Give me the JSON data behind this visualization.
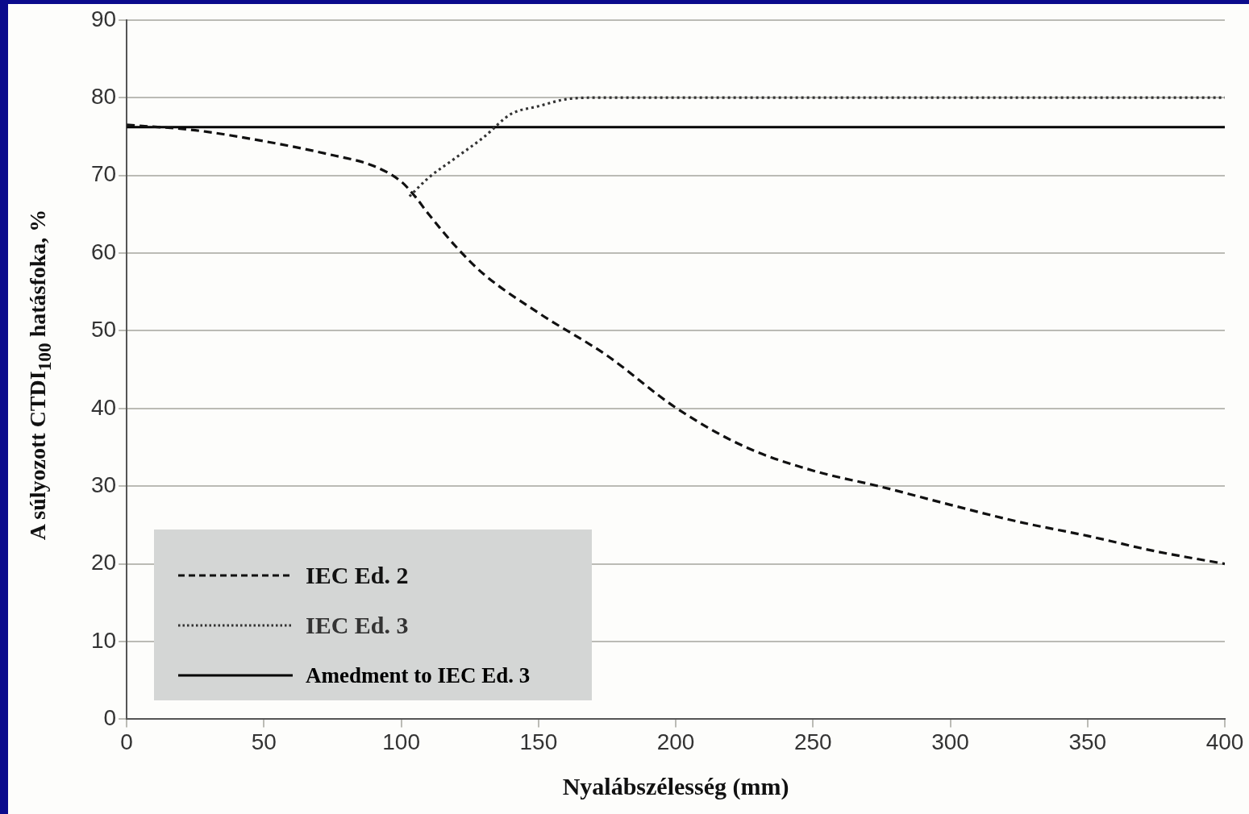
{
  "chart_data": {
    "type": "line",
    "xlabel": "Nyalábszélesség (mm)",
    "ylabel": "A súlyozott CTDI$_{100}$ hatásfoka, %",
    "xlim": [
      0,
      400
    ],
    "xticks": [
      0,
      50,
      100,
      150,
      200,
      250,
      300,
      350,
      400
    ],
    "ylim": [
      0,
      90
    ],
    "yticks": [
      0,
      10,
      20,
      30,
      40,
      50,
      60,
      70,
      80,
      90
    ],
    "grid": "y",
    "legend": "bottom left",
    "marker": "none",
    "series": [
      {
        "name": "IEC Ed. 2",
        "color": "#111111",
        "line_style": "dashed",
        "x": [
          0,
          25,
          50,
          75,
          90,
          100,
          105,
          110,
          120,
          130,
          150,
          175,
          200,
          225,
          250,
          275,
          300,
          325,
          350,
          375,
          400
        ],
        "values": [
          76.5,
          75.8,
          74.4,
          72.6,
          71.2,
          69.2,
          67.3,
          65,
          60.8,
          57.3,
          52.3,
          46.8,
          40.1,
          35.1,
          32,
          29.9,
          27.6,
          25.4,
          23.6,
          21.6,
          20
        ]
      },
      {
        "name": "IEC Ed. 3",
        "color": "#333333",
        "line_style": "dotted",
        "x": [
          103,
          110,
          120,
          130,
          140,
          150,
          160,
          170,
          400
        ],
        "values": [
          67.3,
          69.7,
          72.3,
          74.9,
          77.9,
          78.9,
          79.8,
          80,
          80
        ]
      },
      {
        "name": "Amedment to IEC Ed. 3",
        "color": "#000000",
        "line_style": "solid",
        "x": [
          0,
          50,
          100,
          150,
          200,
          250,
          300,
          350,
          400
        ],
        "values": [
          76.2,
          76.2,
          76.2,
          76.2,
          76.2,
          76.2,
          76.2,
          76.2,
          76.2
        ]
      }
    ]
  }
}
